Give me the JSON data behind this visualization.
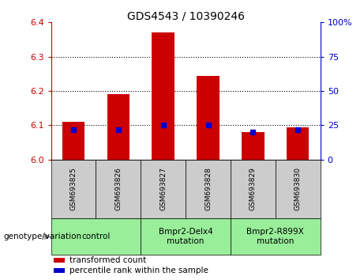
{
  "title": "GDS4543 / 10390246",
  "samples": [
    "GSM693825",
    "GSM693826",
    "GSM693827",
    "GSM693828",
    "GSM693829",
    "GSM693830"
  ],
  "transformed_counts": [
    6.11,
    6.19,
    6.37,
    6.245,
    6.08,
    6.095
  ],
  "percentile_ranks": [
    22,
    22,
    25,
    25,
    20,
    22
  ],
  "ylim_left": [
    6.0,
    6.4
  ],
  "ylim_right": [
    0,
    100
  ],
  "yticks_left": [
    6.0,
    6.1,
    6.2,
    6.3,
    6.4
  ],
  "yticks_right": [
    0,
    25,
    50,
    75,
    100
  ],
  "bar_color": "#CC0000",
  "percentile_color": "#0000CC",
  "left_tick_color": "#CC0000",
  "right_tick_color": "#0000CC",
  "grid_lines": [
    6.1,
    6.2,
    6.3
  ],
  "groups": [
    {
      "label": "control",
      "spans": [
        0,
        1
      ],
      "color": "#99EE99"
    },
    {
      "label": "Bmpr2-Delx4\nmutation",
      "spans": [
        2,
        3
      ],
      "color": "#99EE99"
    },
    {
      "label": "Bmpr2-R899X\nmutation",
      "spans": [
        4,
        5
      ],
      "color": "#99EE99"
    }
  ],
  "sample_bg_color": "#CCCCCC",
  "legend_items": [
    {
      "color": "#CC0000",
      "label": "transformed count"
    },
    {
      "color": "#0000CC",
      "label": "percentile rank within the sample"
    }
  ],
  "genotype_label": "genotype/variation",
  "bar_width": 0.5,
  "figsize": [
    4.61,
    3.54
  ],
  "dpi": 100
}
